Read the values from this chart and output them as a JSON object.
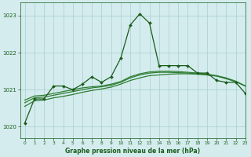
{
  "title": "Graphe pression niveau de la mer (hPa)",
  "bg_color": "#d4ecee",
  "grid_color": "#aed4d6",
  "line_color_main": "#1a5c1a",
  "line_color_smooth": "#2e7d32",
  "xlim": [
    -0.5,
    23
  ],
  "ylim": [
    1019.7,
    1023.35
  ],
  "yticks": [
    1020,
    1021,
    1022,
    1023
  ],
  "xticks": [
    0,
    1,
    2,
    3,
    4,
    5,
    6,
    7,
    8,
    9,
    10,
    11,
    12,
    13,
    14,
    15,
    16,
    17,
    18,
    19,
    20,
    21,
    22,
    23
  ],
  "series_main": [
    1020.1,
    1020.75,
    1020.75,
    1021.1,
    1021.1,
    1021.0,
    1021.15,
    1021.35,
    1021.2,
    1021.35,
    1021.85,
    1022.75,
    1023.05,
    1022.8,
    1021.65,
    1021.65,
    1021.65,
    1021.65,
    1021.45,
    1021.45,
    1021.25,
    1021.2,
    1021.2,
    1020.9
  ],
  "series_smooth1": [
    1020.55,
    1020.7,
    1020.72,
    1020.78,
    1020.82,
    1020.87,
    1020.93,
    1020.98,
    1021.02,
    1021.07,
    1021.15,
    1021.25,
    1021.32,
    1021.38,
    1021.4,
    1021.42,
    1021.43,
    1021.43,
    1021.42,
    1021.4,
    1021.37,
    1021.3,
    1021.22,
    1021.1
  ],
  "series_smooth2": [
    1020.65,
    1020.78,
    1020.8,
    1020.85,
    1020.9,
    1020.95,
    1021.0,
    1021.05,
    1021.08,
    1021.12,
    1021.2,
    1021.32,
    1021.4,
    1021.45,
    1021.47,
    1021.47,
    1021.46,
    1021.45,
    1021.43,
    1021.4,
    1021.37,
    1021.3,
    1021.22,
    1021.1
  ],
  "series_smooth3": [
    1020.72,
    1020.83,
    1020.85,
    1020.9,
    1020.95,
    1021.0,
    1021.05,
    1021.08,
    1021.1,
    1021.15,
    1021.22,
    1021.35,
    1021.43,
    1021.48,
    1021.5,
    1021.5,
    1021.49,
    1021.47,
    1021.45,
    1021.42,
    1021.38,
    1021.32,
    1021.23,
    1021.1
  ]
}
